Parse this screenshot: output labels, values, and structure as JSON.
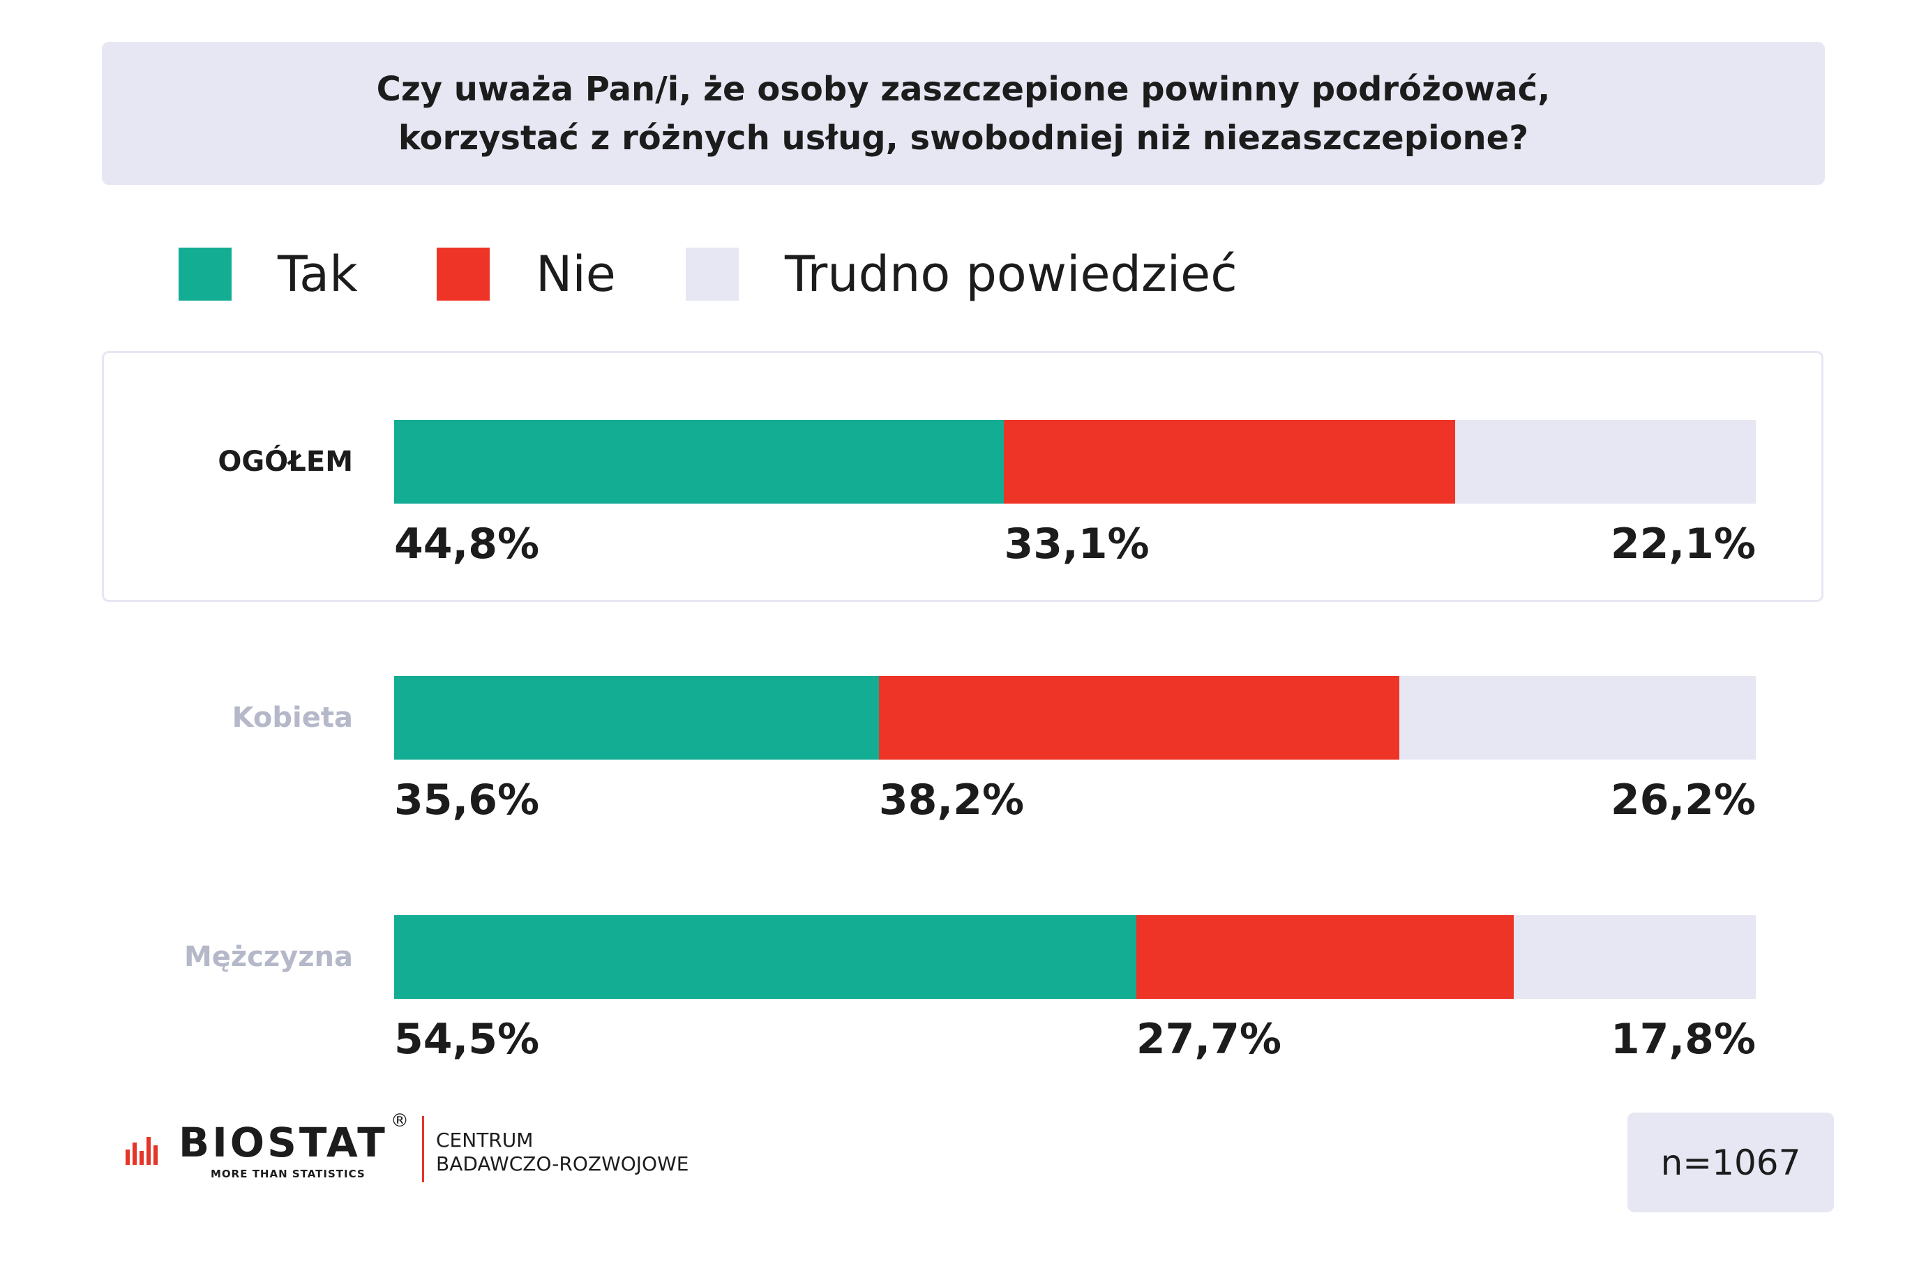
{
  "title": {
    "line1": "Czy uważa Pan/i, że osoby zaszczepione powinny podróżować,",
    "line2": "korzystać z różnych usług, swobodniej niż niezaszczepione?"
  },
  "colors": {
    "tak": "#13ad94",
    "nie": "#ee3426",
    "trudno": "#e6e7f3"
  },
  "chart_data": {
    "type": "bar",
    "orientation": "horizontal-stacked-100",
    "series": [
      {
        "name": "Tak",
        "values": [
          44.8,
          35.6,
          54.5
        ]
      },
      {
        "name": "Nie",
        "values": [
          33.1,
          38.2,
          27.7
        ]
      },
      {
        "name": "Trudno powiedzieć",
        "values": [
          22.1,
          26.2,
          17.8
        ]
      }
    ],
    "categories": [
      "OGÓŁEM",
      "Kobieta",
      "Mężczyzna"
    ],
    "value_labels": [
      [
        "44,8%",
        "33,1%",
        "22,1%"
      ],
      [
        "35,6%",
        "38,2%",
        "26,2%"
      ],
      [
        "54,5%",
        "27,7%",
        "17,8%"
      ]
    ],
    "legend_position": "top",
    "grid": false
  },
  "footer": {
    "logo_name": "BIOSTAT",
    "logo_registered": "®",
    "logo_tagline": "MORE THAN STATISTICS",
    "logo_sub1": "CENTRUM",
    "logo_sub2": "BADAWCZO-ROZWOJOWE",
    "sample": "n=1067"
  }
}
